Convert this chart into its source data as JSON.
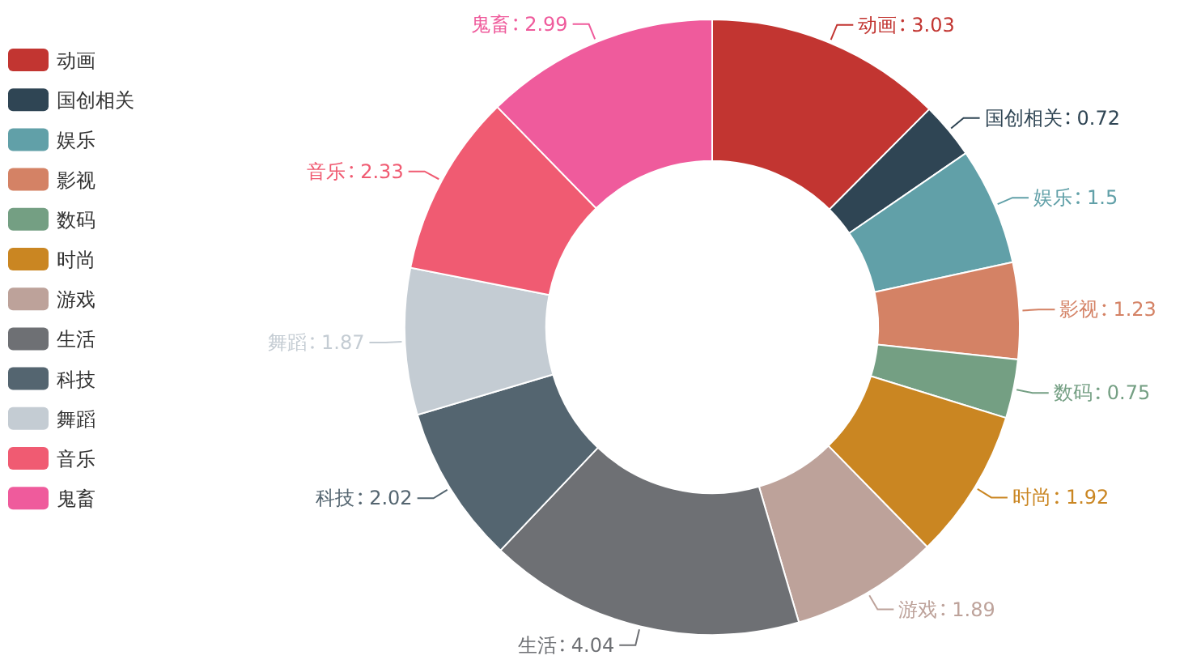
{
  "chart_data": {
    "type": "donut",
    "categories": [
      "动画",
      "国创相关",
      "娱乐",
      "影视",
      "数码",
      "时尚",
      "游戏",
      "生活",
      "科技",
      "舞蹈",
      "音乐",
      "鬼畜"
    ],
    "values": [
      3.03,
      0.72,
      1.5,
      1.23,
      0.75,
      1.92,
      1.89,
      4.04,
      2.02,
      1.87,
      2.33,
      2.99
    ],
    "colors": [
      "#c23531",
      "#2f4554",
      "#61a0a8",
      "#d48265",
      "#749f83",
      "#ca8622",
      "#bda29a",
      "#6e7074",
      "#546570",
      "#c4ccd3",
      "#f05b72",
      "#ef5b9c"
    ],
    "legend": "top left",
    "data_labels": true
  }
}
